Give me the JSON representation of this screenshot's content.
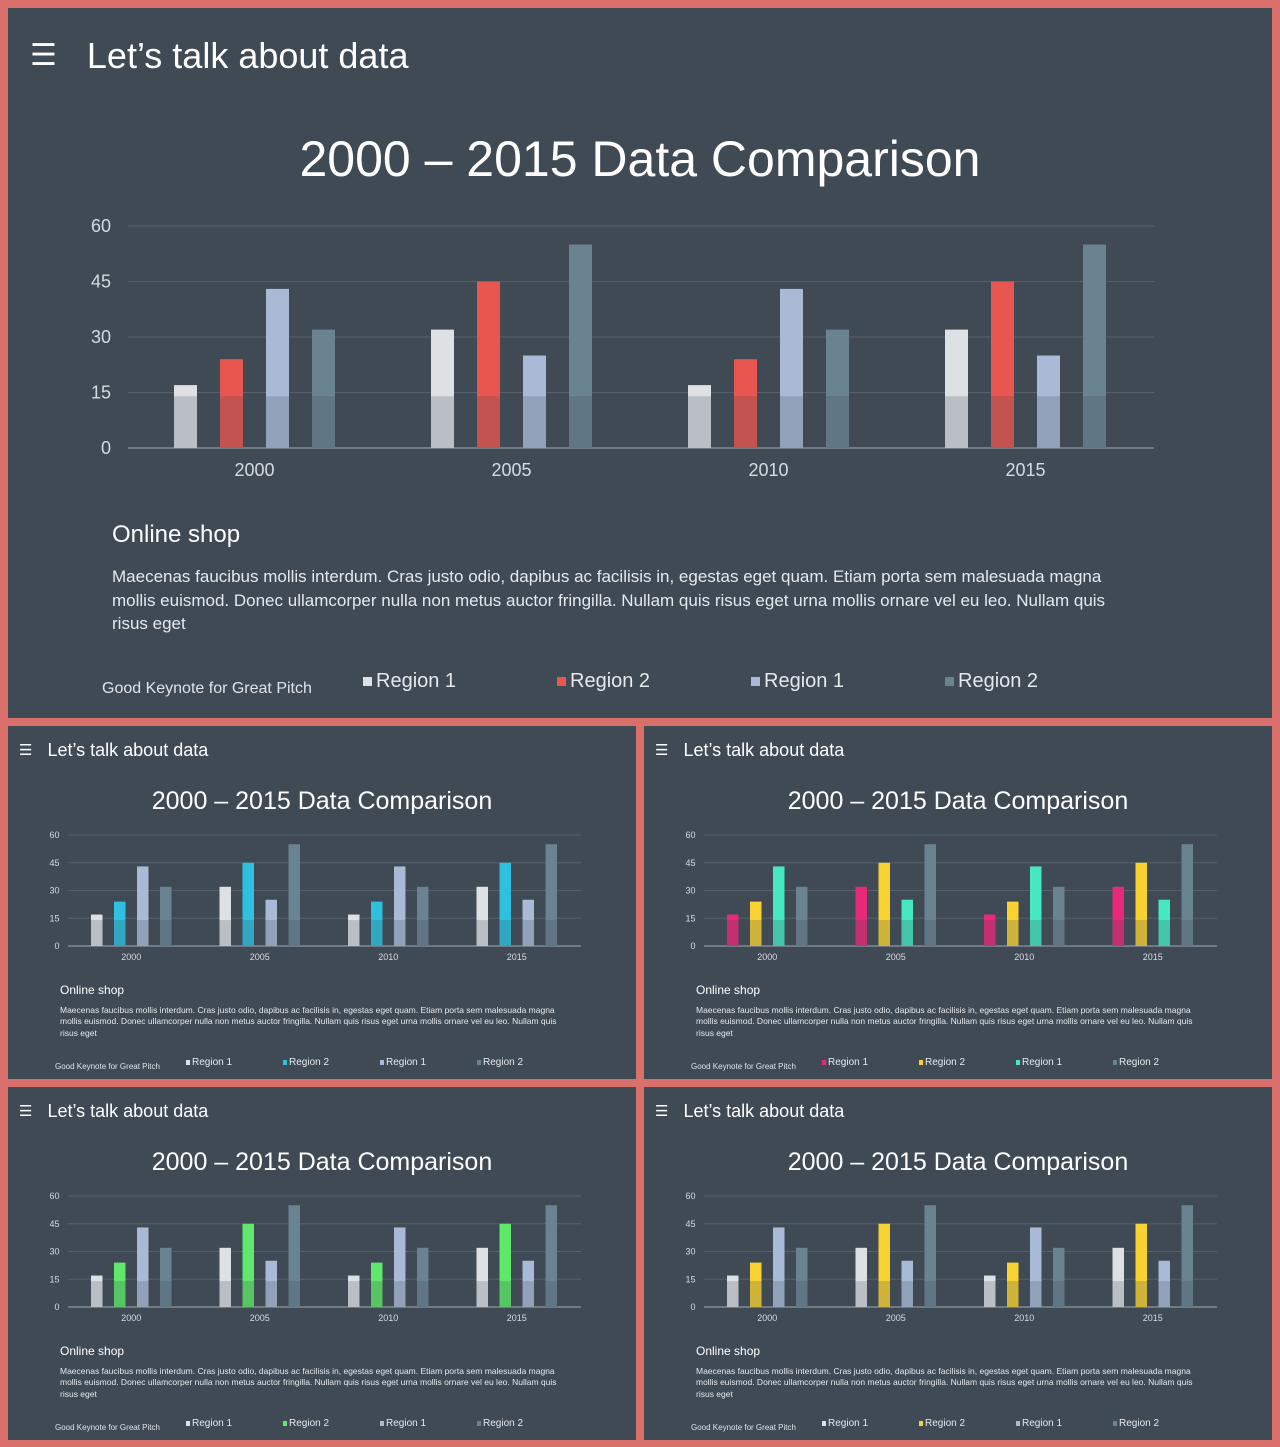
{
  "slides": [
    {
      "header": "Let’s talk about data",
      "menu_icon": "hamburger-menu-icon",
      "chart_title": "2000 – 2015 Data Comparison",
      "section_title": "Online shop",
      "body": "Maecenas faucibus mollis interdum. Cras justo odio, dapibus ac facilisis in, egestas eget quam. Etiam porta sem malesuada magna mollis euismod. Donec ullamcorper nulla non metus auctor fringilla. Nullam quis risus eget urna mollis ornare vel eu leo. Nullam quis risus eget",
      "footer": "Good Keynote for Great Pitch",
      "colors": [
        "#dde1e4",
        "#e85650",
        "#a9bad6",
        "#6a8391"
      ],
      "chart_data": {
        "type": "bar",
        "categories": [
          "2000",
          "2005",
          "2010",
          "2015"
        ],
        "yticks": [
          "0",
          "15",
          "30",
          "45",
          "60"
        ],
        "ylim": [
          0,
          60
        ],
        "series": [
          {
            "name": "Region 1",
            "values": [
              17,
              32,
              17,
              32
            ]
          },
          {
            "name": "Region 2",
            "values": [
              24,
              45,
              24,
              45
            ]
          },
          {
            "name": "Region 1",
            "values": [
              43,
              25,
              43,
              25
            ]
          },
          {
            "name": "Region 2",
            "values": [
              32,
              55,
              32,
              55
            ]
          }
        ]
      }
    },
    {
      "header": "Let’s talk about data",
      "menu_icon": "hamburger-menu-icon",
      "chart_title": "2000 – 2015 Data Comparison",
      "section_title": "Online shop",
      "body": "Maecenas faucibus mollis interdum. Cras justo odio, dapibus ac facilisis in, egestas eget quam. Etiam porta sem malesuada magna mollis euismod. Donec ullamcorper nulla non metus auctor fringilla. Nullam quis risus eget urna mollis ornare vel eu leo. Nullam quis risus eget",
      "footer": "Good Keynote for Great Pitch",
      "colors": [
        "#dde1e4",
        "#2ec0de",
        "#a9bad6",
        "#6a8391"
      ],
      "chart_data": {
        "type": "bar",
        "categories": [
          "2000",
          "2005",
          "2010",
          "2015"
        ],
        "yticks": [
          "0",
          "15",
          "30",
          "45",
          "60"
        ],
        "ylim": [
          0,
          60
        ],
        "series": [
          {
            "name": "Region 1",
            "values": [
              17,
              32,
              17,
              32
            ]
          },
          {
            "name": "Region 2",
            "values": [
              24,
              45,
              24,
              45
            ]
          },
          {
            "name": "Region 1",
            "values": [
              43,
              25,
              43,
              25
            ]
          },
          {
            "name": "Region 2",
            "values": [
              32,
              55,
              32,
              55
            ]
          }
        ]
      }
    },
    {
      "header": "Let’s talk about data",
      "menu_icon": "hamburger-menu-icon",
      "chart_title": "2000 – 2015 Data Comparison",
      "section_title": "Online shop",
      "body": "Maecenas faucibus mollis interdum. Cras justo odio, dapibus ac facilisis in, egestas eget quam. Etiam porta sem malesuada magna mollis euismod. Donec ullamcorper nulla non metus auctor fringilla. Nullam quis risus eget urna mollis ornare vel eu leo. Nullam quis risus eget",
      "footer": "Good Keynote for Great Pitch",
      "colors": [
        "#e8297a",
        "#f8d231",
        "#45e8c0",
        "#6a8391"
      ],
      "chart_data": {
        "type": "bar",
        "categories": [
          "2000",
          "2005",
          "2010",
          "2015"
        ],
        "yticks": [
          "0",
          "15",
          "30",
          "45",
          "60"
        ],
        "ylim": [
          0,
          60
        ],
        "series": [
          {
            "name": "Region 1",
            "values": [
              17,
              32,
              17,
              32
            ]
          },
          {
            "name": "Region 2",
            "values": [
              24,
              45,
              24,
              45
            ]
          },
          {
            "name": "Region 1",
            "values": [
              43,
              25,
              43,
              25
            ]
          },
          {
            "name": "Region 2",
            "values": [
              32,
              55,
              32,
              55
            ]
          }
        ]
      }
    },
    {
      "header": "Let’s talk about data",
      "menu_icon": "hamburger-menu-icon",
      "chart_title": "2000 – 2015 Data Comparison",
      "section_title": "Online shop",
      "body": "Maecenas faucibus mollis interdum. Cras justo odio, dapibus ac facilisis in, egestas eget quam. Etiam porta sem malesuada magna mollis euismod. Donec ullamcorper nulla non metus auctor fringilla. Nullam quis risus eget urna mollis ornare vel eu leo. Nullam quis risus eget",
      "footer": "Good Keynote for Great Pitch",
      "colors": [
        "#dde1e4",
        "#5fe86a",
        "#a9bad6",
        "#6a8391"
      ],
      "chart_data": {
        "type": "bar",
        "categories": [
          "2000",
          "2005",
          "2010",
          "2015"
        ],
        "yticks": [
          "0",
          "15",
          "30",
          "45",
          "60"
        ],
        "ylim": [
          0,
          60
        ],
        "series": [
          {
            "name": "Region 1",
            "values": [
              17,
              32,
              17,
              32
            ]
          },
          {
            "name": "Region 2",
            "values": [
              24,
              45,
              24,
              45
            ]
          },
          {
            "name": "Region 1",
            "values": [
              43,
              25,
              43,
              25
            ]
          },
          {
            "name": "Region 2",
            "values": [
              32,
              55,
              32,
              55
            ]
          }
        ]
      }
    },
    {
      "header": "Let’s talk about data",
      "menu_icon": "hamburger-menu-icon",
      "chart_title": "2000 – 2015 Data Comparison",
      "section_title": "Online shop",
      "body": "Maecenas faucibus mollis interdum. Cras justo odio, dapibus ac facilisis in, egestas eget quam. Etiam porta sem malesuada magna mollis euismod. Donec ullamcorper nulla non metus auctor fringilla. Nullam quis risus eget urna mollis ornare vel eu leo. Nullam quis risus eget",
      "footer": "Good Keynote for Great Pitch",
      "colors": [
        "#dde1e4",
        "#f8d231",
        "#a9bad6",
        "#6a8391"
      ],
      "chart_data": {
        "type": "bar",
        "categories": [
          "2000",
          "2005",
          "2010",
          "2015"
        ],
        "yticks": [
          "0",
          "15",
          "30",
          "45",
          "60"
        ],
        "ylim": [
          0,
          60
        ],
        "series": [
          {
            "name": "Region 1",
            "values": [
              17,
              32,
              17,
              32
            ]
          },
          {
            "name": "Region 2",
            "values": [
              24,
              45,
              24,
              45
            ]
          },
          {
            "name": "Region 1",
            "values": [
              43,
              25,
              43,
              25
            ]
          },
          {
            "name": "Region 2",
            "values": [
              32,
              55,
              32,
              55
            ]
          }
        ]
      }
    }
  ]
}
